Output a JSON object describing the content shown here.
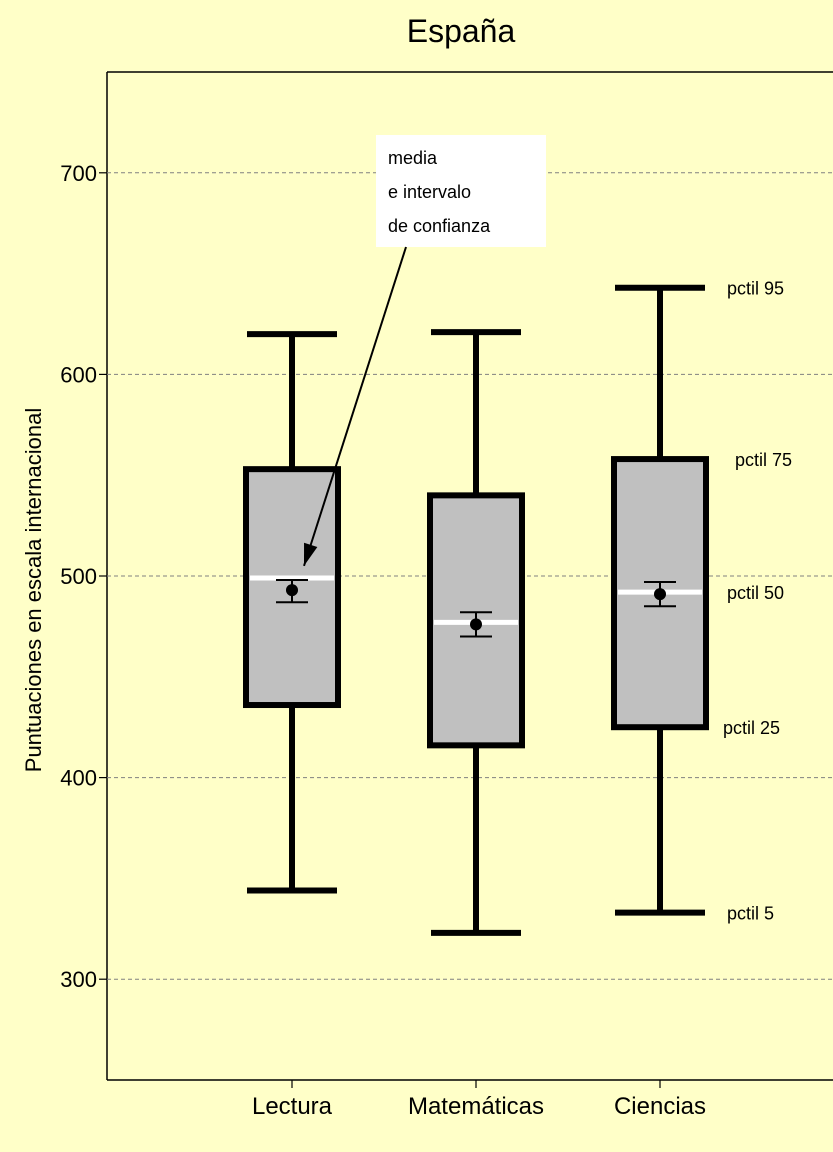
{
  "chart_data": {
    "type": "box",
    "title": "España",
    "ylabel": "Puntuaciones en escala internacional",
    "xlabel": "",
    "ylim": [
      250,
      750
    ],
    "yticks": [
      300,
      400,
      500,
      600,
      700
    ],
    "grid": true,
    "categories": [
      "Lectura",
      "Matemáticas",
      "Ciencias"
    ],
    "boxes": [
      {
        "name": "Lectura",
        "p5": 344,
        "p25": 436,
        "p50": 499,
        "p75": 553,
        "p95": 620,
        "mean": 493,
        "ci_low": 487,
        "ci_high": 498
      },
      {
        "name": "Matemáticas",
        "p5": 323,
        "p25": 416,
        "p50": 477,
        "p75": 540,
        "p95": 621,
        "mean": 476,
        "ci_low": 470,
        "ci_high": 482
      },
      {
        "name": "Ciencias",
        "p5": 333,
        "p25": 425,
        "p50": 492,
        "p75": 558,
        "p95": 643,
        "mean": 491,
        "ci_low": 485,
        "ci_high": 497
      }
    ],
    "percentile_labels": [
      {
        "text": "pctil 95",
        "value": 643
      },
      {
        "text": "pctil 75",
        "value": 558
      },
      {
        "text": "pctil 50",
        "value": 492
      },
      {
        "text": "pctil 25",
        "value": 425
      },
      {
        "text": "pctil 5",
        "value": 333
      }
    ],
    "annotation": {
      "lines": [
        "media",
        "e intervalo",
        "de confianza"
      ],
      "points_to": {
        "category": "Lectura",
        "value": 508
      }
    },
    "colors": {
      "background": "#ffffc8",
      "box_fill": "#c0c0c0",
      "stroke": "#000000",
      "median": "#ffffff",
      "grid": "#808080",
      "annotation_bg": "#ffffff"
    }
  }
}
